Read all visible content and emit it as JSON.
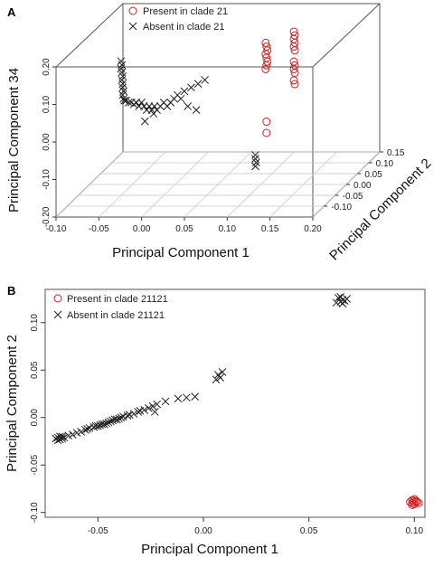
{
  "chart_data": [
    {
      "panel": "A",
      "type": "scatter",
      "projection": "3d",
      "xlabel": "Principal Component 1",
      "ylabel": "Principal Component 2",
      "zlabel": "Principal Component 34",
      "xlim": [
        -0.1,
        0.2
      ],
      "ylim": [
        -0.15,
        0.15
      ],
      "zlim": [
        -0.2,
        0.2
      ],
      "xticks": [
        "-0.10",
        "-0.05",
        "0.00",
        "0.05",
        "0.10",
        "0.15",
        "0.20"
      ],
      "yticks": [
        "-0.10",
        "-0.05",
        "0.00",
        "0.05",
        "0.10",
        "0.15"
      ],
      "zticks": [
        "-0.20",
        "-0.10",
        "0.00",
        "0.10",
        "0.20"
      ],
      "legend_position": "top-center",
      "series": [
        {
          "name": "Present in clade 21",
          "marker": "circle",
          "color": "#cc2222",
          "points": [
            [
              0.098,
              0.03,
              0.16
            ],
            [
              0.099,
              0.03,
              0.15
            ],
            [
              0.1,
              0.03,
              0.14
            ],
            [
              0.098,
              0.03,
              0.13
            ],
            [
              0.099,
              0.03,
              0.12
            ],
            [
              0.1,
              0.03,
              0.11
            ],
            [
              0.099,
              0.03,
              0.1
            ],
            [
              0.098,
              0.03,
              0.09
            ],
            [
              0.131,
              0.03,
              0.19
            ],
            [
              0.132,
              0.03,
              0.18
            ],
            [
              0.131,
              0.03,
              0.17
            ],
            [
              0.132,
              0.03,
              0.16
            ],
            [
              0.131,
              0.03,
              0.15
            ],
            [
              0.132,
              0.03,
              0.14
            ],
            [
              0.131,
              0.03,
              0.11
            ],
            [
              0.132,
              0.03,
              0.1
            ],
            [
              0.131,
              0.03,
              0.09
            ],
            [
              0.132,
              0.03,
              0.08
            ],
            [
              0.131,
              0.03,
              0.06
            ],
            [
              0.132,
              0.03,
              0.05
            ],
            [
              0.099,
              0.03,
              -0.05
            ],
            [
              0.099,
              0.03,
              -0.08
            ]
          ]
        },
        {
          "name": "Absent in clade 21",
          "marker": "x",
          "color": "#222222",
          "points": [
            [
              -0.058,
              -0.02,
              0.14
            ],
            [
              -0.057,
              -0.02,
              0.13
            ],
            [
              -0.058,
              -0.02,
              0.12
            ],
            [
              -0.057,
              -0.02,
              0.11
            ],
            [
              -0.056,
              -0.02,
              0.1
            ],
            [
              -0.057,
              -0.02,
              0.09
            ],
            [
              -0.056,
              -0.02,
              0.08
            ],
            [
              -0.056,
              -0.02,
              0.07
            ],
            [
              -0.055,
              -0.02,
              0.06
            ],
            [
              -0.056,
              -0.02,
              0.05
            ],
            [
              -0.055,
              -0.02,
              0.04
            ],
            [
              -0.054,
              -0.02,
              0.035
            ],
            [
              -0.052,
              -0.02,
              0.035
            ],
            [
              -0.049,
              -0.02,
              0.03
            ],
            [
              -0.046,
              -0.02,
              0.03
            ],
            [
              -0.043,
              -0.02,
              0.025
            ],
            [
              -0.04,
              -0.02,
              0.03
            ],
            [
              -0.037,
              -0.02,
              0.02
            ],
            [
              -0.034,
              -0.02,
              0.03
            ],
            [
              -0.031,
              -0.02,
              0.02
            ],
            [
              -0.028,
              -0.02,
              0.01
            ],
            [
              -0.025,
              -0.02,
              0.02
            ],
            [
              -0.022,
              -0.02,
              0.01
            ],
            [
              -0.019,
              -0.02,
              0.02
            ],
            [
              -0.016,
              -0.02,
              0.01
            ],
            [
              -0.012,
              -0.02,
              0.02
            ],
            [
              -0.008,
              -0.02,
              0.03
            ],
            [
              -0.004,
              -0.02,
              0.02
            ],
            [
              0.0,
              -0.02,
              0.03
            ],
            [
              0.004,
              -0.02,
              0.04
            ],
            [
              0.008,
              -0.02,
              0.05
            ],
            [
              0.012,
              -0.02,
              0.04
            ],
            [
              0.016,
              -0.02,
              0.06
            ],
            [
              0.024,
              -0.02,
              0.07
            ],
            [
              0.032,
              -0.02,
              0.08
            ],
            [
              0.04,
              -0.02,
              0.09
            ],
            [
              -0.03,
              -0.02,
              -0.02
            ],
            [
              -0.02,
              -0.02,
              0.0
            ],
            [
              0.02,
              -0.02,
              0.02
            ],
            [
              0.03,
              -0.02,
              0.01
            ],
            [
              0.099,
              -0.02,
              -0.11
            ],
            [
              0.099,
              -0.02,
              -0.12
            ],
            [
              0.1,
              -0.02,
              -0.13
            ],
            [
              0.099,
              -0.02,
              -0.14
            ]
          ]
        }
      ]
    },
    {
      "panel": "B",
      "type": "scatter",
      "xlabel": "Principal Component 1",
      "ylabel": "Principal Component 2",
      "xlim": [
        -0.075,
        0.105
      ],
      "ylim": [
        -0.105,
        0.135
      ],
      "xticks": [
        "-0.05",
        "0.00",
        "0.05",
        "0.10"
      ],
      "yticks": [
        "-0.10",
        "-0.05",
        "0.00",
        "0.05",
        "0.10"
      ],
      "legend_position": "top-left",
      "series": [
        {
          "name": "Present in clade 21121",
          "marker": "circle",
          "color": "#cc2222",
          "points": [
            [
              0.099,
              -0.087
            ],
            [
              0.1,
              -0.088
            ],
            [
              0.101,
              -0.089
            ],
            [
              0.099,
              -0.09
            ],
            [
              0.1,
              -0.091
            ],
            [
              0.101,
              -0.088
            ],
            [
              0.098,
              -0.089
            ],
            [
              0.1,
              -0.086
            ],
            [
              0.102,
              -0.09
            ],
            [
              0.099,
              -0.092
            ]
          ]
        },
        {
          "name": "Absent in clade 21121",
          "marker": "x",
          "color": "#222222",
          "points": [
            [
              -0.068,
              -0.02
            ],
            [
              -0.069,
              -0.021
            ],
            [
              -0.067,
              -0.022
            ],
            [
              -0.068,
              -0.023
            ],
            [
              -0.07,
              -0.022
            ],
            [
              -0.066,
              -0.021
            ],
            [
              -0.069,
              -0.024
            ],
            [
              -0.067,
              -0.02
            ],
            [
              -0.064,
              -0.019
            ],
            [
              -0.062,
              -0.018
            ],
            [
              -0.06,
              -0.016
            ],
            [
              -0.058,
              -0.015
            ],
            [
              -0.056,
              -0.013
            ],
            [
              -0.055,
              -0.012
            ],
            [
              -0.054,
              -0.011
            ],
            [
              -0.052,
              -0.01
            ],
            [
              -0.051,
              -0.009
            ],
            [
              -0.05,
              -0.009
            ],
            [
              -0.049,
              -0.008
            ],
            [
              -0.048,
              -0.007
            ],
            [
              -0.047,
              -0.007
            ],
            [
              -0.046,
              -0.006
            ],
            [
              -0.045,
              -0.005
            ],
            [
              -0.044,
              -0.004
            ],
            [
              -0.043,
              -0.003
            ],
            [
              -0.042,
              -0.002
            ],
            [
              -0.041,
              -0.002
            ],
            [
              -0.04,
              -0.001
            ],
            [
              -0.039,
              0.0
            ],
            [
              -0.038,
              0.001
            ],
            [
              -0.036,
              0.002
            ],
            [
              -0.035,
              0.003
            ],
            [
              -0.033,
              0.004
            ],
            [
              -0.031,
              0.006
            ],
            [
              -0.03,
              0.007
            ],
            [
              -0.028,
              0.008
            ],
            [
              -0.026,
              0.01
            ],
            [
              -0.024,
              0.012
            ],
            [
              -0.022,
              0.014
            ],
            [
              -0.023,
              0.006
            ],
            [
              -0.018,
              0.017
            ],
            [
              -0.012,
              0.02
            ],
            [
              -0.008,
              0.021
            ],
            [
              -0.004,
              0.022
            ],
            [
              0.006,
              0.04
            ],
            [
              0.008,
              0.042
            ],
            [
              0.007,
              0.045
            ],
            [
              0.009,
              0.048
            ],
            [
              0.065,
              0.122
            ],
            [
              0.066,
              0.124
            ],
            [
              0.064,
              0.126
            ],
            [
              0.067,
              0.123
            ],
            [
              0.065,
              0.127
            ],
            [
              0.063,
              0.121
            ],
            [
              0.066,
              0.12
            ],
            [
              0.068,
              0.125
            ]
          ]
        }
      ]
    }
  ]
}
